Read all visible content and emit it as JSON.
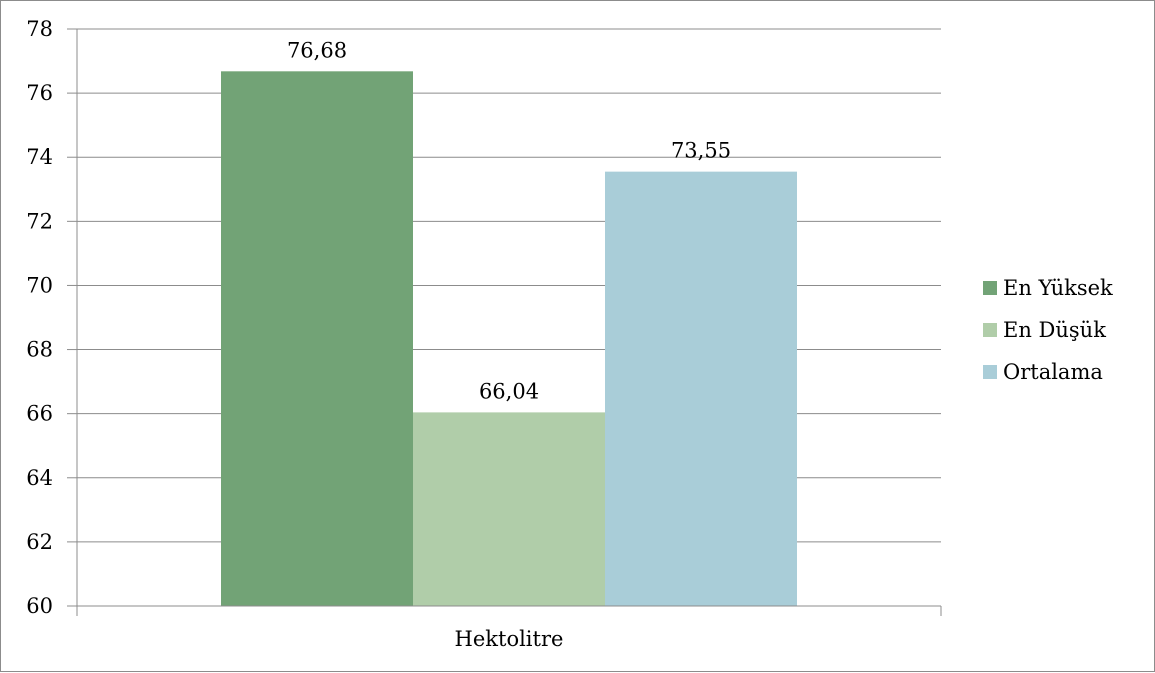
{
  "chart_data": {
    "type": "bar",
    "categories": [
      "Hektolitre"
    ],
    "series": [
      {
        "name": "En Yüksek",
        "values": [
          76.68
        ],
        "label": "76,68",
        "color": "#72a376"
      },
      {
        "name": "En Düşük",
        "values": [
          66.04
        ],
        "label": "66,04",
        "color": "#b0cda9"
      },
      {
        "name": "Ortalama",
        "values": [
          73.55
        ],
        "label": "73,55",
        "color": "#a9cdd8"
      }
    ],
    "yticks": [
      "60",
      "62",
      "64",
      "66",
      "68",
      "70",
      "72",
      "74",
      "76",
      "78"
    ],
    "ylim": [
      60,
      78
    ],
    "grid": true,
    "legend_position": "right",
    "title": "",
    "xlabel": "",
    "ylabel": ""
  }
}
